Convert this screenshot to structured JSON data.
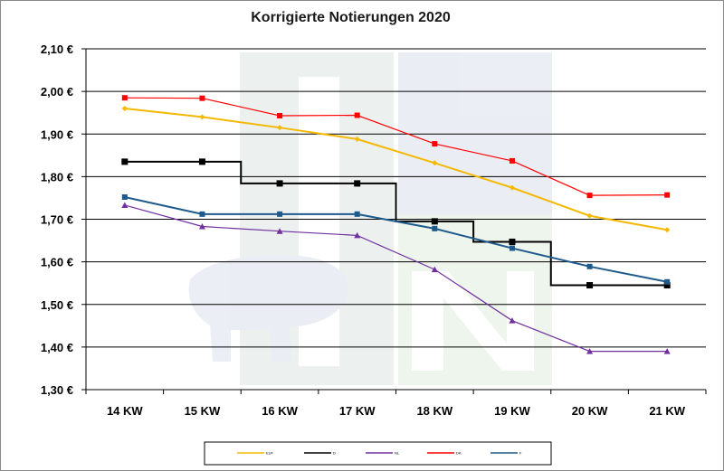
{
  "chart_data": {
    "type": "line",
    "title": "Korrigierte Notierungen 2020",
    "categories": [
      "14 KW",
      "15 KW",
      "16 KW",
      "17 KW",
      "18 KW",
      "19 KW",
      "20 KW",
      "21 KW"
    ],
    "ylim": [
      1.3,
      2.1
    ],
    "yticks": [
      "1,30 €",
      "1,40 €",
      "1,50 €",
      "1,60 €",
      "1,70 €",
      "1,80 €",
      "1,90 €",
      "2,00 €",
      "2,10 €"
    ],
    "grid": true,
    "legend_position": "bottom",
    "series": [
      {
        "name": "EUF",
        "color": "#f5b800",
        "marker": "diamond",
        "values": [
          1.96,
          1.94,
          1.915,
          1.888,
          1.832,
          1.774,
          1.708,
          1.675
        ]
      },
      {
        "name": "D",
        "color": "#000000",
        "marker": "square",
        "values": [
          1.835,
          1.835,
          1.784,
          1.784,
          1.695,
          1.647,
          1.545,
          1.545
        ]
      },
      {
        "name": "NL",
        "color": "#7030a0",
        "marker": "triangle",
        "values": [
          1.733,
          1.683,
          1.672,
          1.662,
          1.582,
          1.462,
          1.39,
          1.39
        ]
      },
      {
        "name": "DK",
        "color": "#ff0000",
        "marker": "square",
        "values": [
          1.985,
          1.984,
          1.943,
          1.944,
          1.877,
          1.837,
          1.756,
          1.757
        ]
      },
      {
        "name": "F",
        "color": "#1f5a8c",
        "marker": "square",
        "values": [
          1.752,
          1.712,
          1.712,
          1.712,
          1.678,
          1.632,
          1.589,
          1.553
        ]
      }
    ]
  }
}
